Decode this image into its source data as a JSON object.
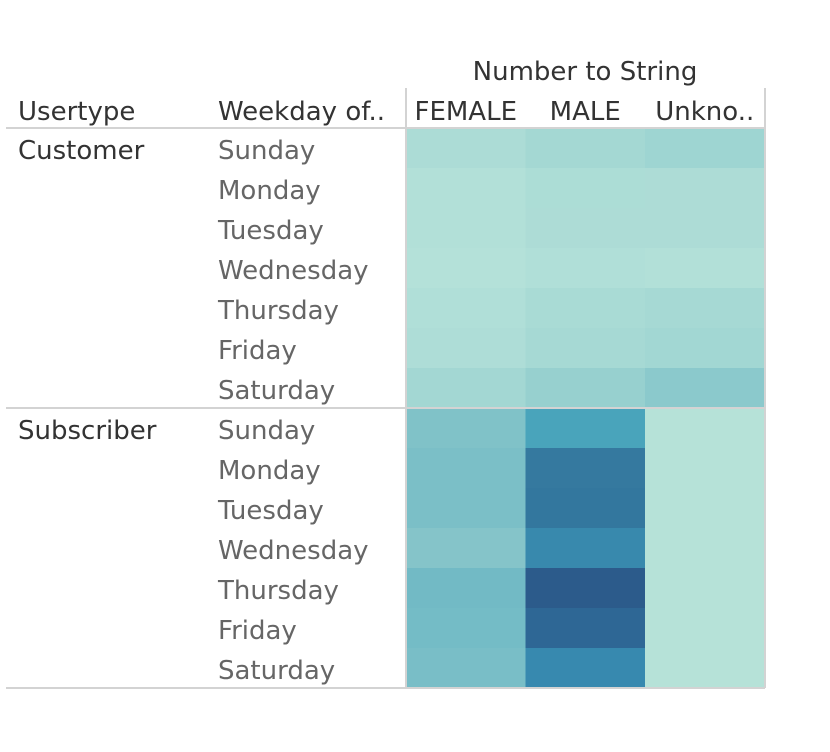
{
  "chart_data": {
    "type": "heatmap",
    "column_group_title": "Number to String",
    "row_header_1": "Usertype",
    "row_header_2": "Weekday of..",
    "columns": [
      "FEMALE",
      "MALE",
      "Unkno.."
    ],
    "row_groups": [
      {
        "name": "Customer",
        "rows": [
          {
            "day": "Sunday",
            "cells": [
              "#acdcd6",
              "#a4d8d3",
              "#9ed5d2"
            ]
          },
          {
            "day": "Monday",
            "cells": [
              "#b2e0d8",
              "#acddd6",
              "#addcd6"
            ]
          },
          {
            "day": "Tuesday",
            "cells": [
              "#b2e0d8",
              "#addcd6",
              "#addcd6"
            ]
          },
          {
            "day": "Wednesday",
            "cells": [
              "#b4e1d9",
              "#b0dfd8",
              "#b2e0d8"
            ]
          },
          {
            "day": "Thursday",
            "cells": [
              "#b0dfd8",
              "#a9dbd5",
              "#a6d9d4"
            ]
          },
          {
            "day": "Friday",
            "cells": [
              "#aeddd7",
              "#a6d9d4",
              "#a2d7d3"
            ]
          },
          {
            "day": "Saturday",
            "cells": [
              "#a3d7d3",
              "#97d0cf",
              "#8bc9cc"
            ]
          }
        ]
      },
      {
        "name": "Subscriber",
        "rows": [
          {
            "day": "Sunday",
            "cells": [
              "#80c2c8",
              "#49a4bb",
              "#b6e2d8"
            ]
          },
          {
            "day": "Monday",
            "cells": [
              "#7bbfc7",
              "#35799f",
              "#b6e2d8"
            ]
          },
          {
            "day": "Tuesday",
            "cells": [
              "#7bbfc7",
              "#33779e",
              "#b6e2d8"
            ]
          },
          {
            "day": "Wednesday",
            "cells": [
              "#85c4c9",
              "#3889ad",
              "#b6e2d8"
            ]
          },
          {
            "day": "Thursday",
            "cells": [
              "#72bac5",
              "#2c5b8b",
              "#b6e2d8"
            ]
          },
          {
            "day": "Friday",
            "cells": [
              "#74bcc6",
              "#2e6795",
              "#b6e2d8"
            ]
          },
          {
            "day": "Saturday",
            "cells": [
              "#79bec7",
              "#3789af",
              "#b6e2d8"
            ]
          }
        ]
      }
    ]
  }
}
